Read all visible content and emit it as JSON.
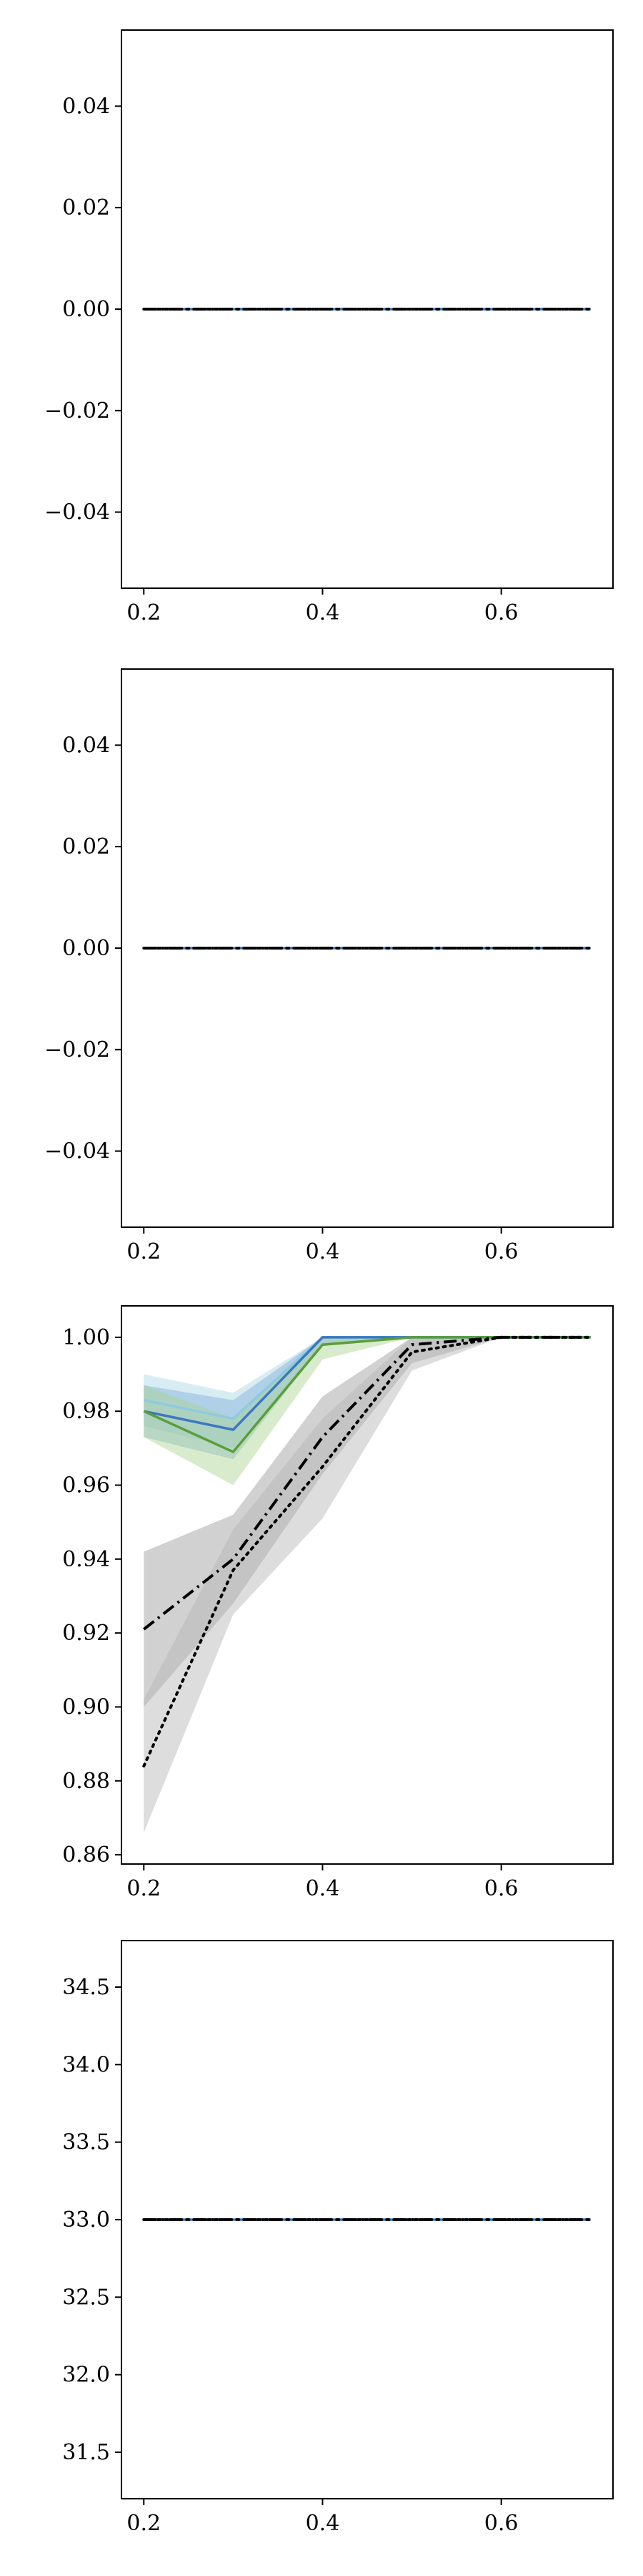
{
  "chart_data": [
    {
      "type": "line",
      "title": "",
      "xlabel": "",
      "ylabel": "",
      "xlim": [
        0.175,
        0.725
      ],
      "ylim": [
        -0.055,
        0.055
      ],
      "x_ticks": [
        0.2,
        0.4,
        0.6
      ],
      "x_tick_labels": [
        "0.2",
        "0.4",
        "0.6"
      ],
      "y_ticks": [
        -0.04,
        -0.02,
        0.0,
        0.02,
        0.04
      ],
      "y_tick_labels": [
        "−0.04",
        "−0.02",
        "0.00",
        "0.02",
        "0.04"
      ],
      "grid": false,
      "x": [
        0.2,
        0.3,
        0.4,
        0.5,
        0.6,
        0.7
      ],
      "series": [
        {
          "values": [
            0,
            0,
            0,
            0,
            0,
            0
          ],
          "color": "#3a78c2",
          "style": "solid"
        },
        {
          "values": [
            0,
            0,
            0,
            0,
            0,
            0
          ],
          "color": "#000000",
          "style": "dashdot"
        },
        {
          "values": [
            0,
            0,
            0,
            0,
            0,
            0
          ],
          "color": "#000000",
          "style": "dotted"
        }
      ]
    },
    {
      "type": "line",
      "title": "",
      "xlabel": "",
      "ylabel": "",
      "xlim": [
        0.175,
        0.725
      ],
      "ylim": [
        -0.055,
        0.055
      ],
      "x_ticks": [
        0.2,
        0.4,
        0.6
      ],
      "x_tick_labels": [
        "0.2",
        "0.4",
        "0.6"
      ],
      "y_ticks": [
        -0.04,
        -0.02,
        0.0,
        0.02,
        0.04
      ],
      "y_tick_labels": [
        "−0.04",
        "−0.02",
        "0.00",
        "0.02",
        "0.04"
      ],
      "grid": false,
      "x": [
        0.2,
        0.3,
        0.4,
        0.5,
        0.6,
        0.7
      ],
      "series": [
        {
          "values": [
            0,
            0,
            0,
            0,
            0,
            0
          ],
          "color": "#3a78c2",
          "style": "solid"
        },
        {
          "values": [
            0,
            0,
            0,
            0,
            0,
            0
          ],
          "color": "#000000",
          "style": "dashdot"
        },
        {
          "values": [
            0,
            0,
            0,
            0,
            0,
            0
          ],
          "color": "#000000",
          "style": "dotted"
        }
      ]
    },
    {
      "type": "line",
      "title": "",
      "xlabel": "",
      "ylabel": "",
      "xlim": [
        0.175,
        0.725
      ],
      "ylim": [
        0.8575,
        1.0085
      ],
      "x_ticks": [
        0.2,
        0.4,
        0.6
      ],
      "x_tick_labels": [
        "0.2",
        "0.4",
        "0.6"
      ],
      "y_ticks": [
        0.86,
        0.88,
        0.9,
        0.92,
        0.94,
        0.96,
        0.98,
        1.0
      ],
      "y_tick_labels": [
        "0.86",
        "0.88",
        "0.90",
        "0.92",
        "0.94",
        "0.96",
        "0.98",
        "1.00"
      ],
      "grid": false,
      "x": [
        0.2,
        0.3,
        0.4,
        0.5,
        0.6,
        0.7
      ],
      "series": [
        {
          "values": [
            0.983,
            0.978,
            1.0,
            1.0,
            1.0,
            1.0
          ],
          "lower": [
            0.976,
            0.97,
            0.998,
            1.0,
            1.0,
            1.0
          ],
          "upper": [
            0.99,
            0.985,
            1.0,
            1.0,
            1.0,
            1.0
          ],
          "color": "#8ecae0",
          "band_color": "#a8d4e6",
          "style": "solid"
        },
        {
          "values": [
            0.98,
            0.975,
            1.0,
            1.0,
            1.0,
            1.0
          ],
          "lower": [
            0.973,
            0.967,
            0.998,
            1.0,
            1.0,
            1.0
          ],
          "upper": [
            0.987,
            0.983,
            1.0,
            1.0,
            1.0,
            1.0
          ],
          "color": "#3a78c2",
          "band_color": "#7fb0d8",
          "style": "solid"
        },
        {
          "values": [
            0.98,
            0.969,
            0.998,
            1.0,
            1.0,
            1.0
          ],
          "lower": [
            0.973,
            0.96,
            0.994,
            1.0,
            1.0,
            1.0
          ],
          "upper": [
            0.987,
            0.978,
            1.0,
            1.0,
            1.0,
            1.0
          ],
          "color": "#5a9e3a",
          "band_color": "#a9d38f",
          "style": "solid"
        },
        {
          "values": [
            0.921,
            0.94,
            0.973,
            0.998,
            1.0,
            1.0
          ],
          "lower": [
            0.9,
            0.928,
            0.963,
            0.993,
            1.0,
            1.0
          ],
          "upper": [
            0.942,
            0.952,
            0.984,
            1.0,
            1.0,
            1.0
          ],
          "color": "#000000",
          "band_color": "#9a9a9a",
          "style": "dashdot"
        },
        {
          "values": [
            0.884,
            0.937,
            0.965,
            0.996,
            1.0,
            1.0
          ],
          "lower": [
            0.866,
            0.925,
            0.951,
            0.991,
            1.0,
            1.0
          ],
          "upper": [
            0.902,
            0.948,
            0.978,
            1.0,
            1.0,
            1.0
          ],
          "color": "#000000",
          "band_color": "#b4b4b4",
          "style": "dotted"
        }
      ]
    },
    {
      "type": "line",
      "title": "",
      "xlabel": "",
      "ylabel": "",
      "xlim": [
        0.175,
        0.725
      ],
      "ylim": [
        31.2,
        34.8
      ],
      "x_ticks": [
        0.2,
        0.4,
        0.6
      ],
      "x_tick_labels": [
        "0.2",
        "0.4",
        "0.6"
      ],
      "y_ticks": [
        31.5,
        32.0,
        32.5,
        33.0,
        33.5,
        34.0,
        34.5
      ],
      "y_tick_labels": [
        "31.5",
        "32.0",
        "32.5",
        "33.0",
        "33.5",
        "34.0",
        "34.5"
      ],
      "grid": false,
      "x": [
        0.2,
        0.3,
        0.4,
        0.5,
        0.6,
        0.7
      ],
      "series": [
        {
          "values": [
            33,
            33,
            33,
            33,
            33,
            33
          ],
          "color": "#3a78c2",
          "style": "solid"
        },
        {
          "values": [
            33,
            33,
            33,
            33,
            33,
            33
          ],
          "color": "#000000",
          "style": "dashdot"
        },
        {
          "values": [
            33,
            33,
            33,
            33,
            33,
            33
          ],
          "color": "#000000",
          "style": "dotted"
        }
      ]
    }
  ]
}
